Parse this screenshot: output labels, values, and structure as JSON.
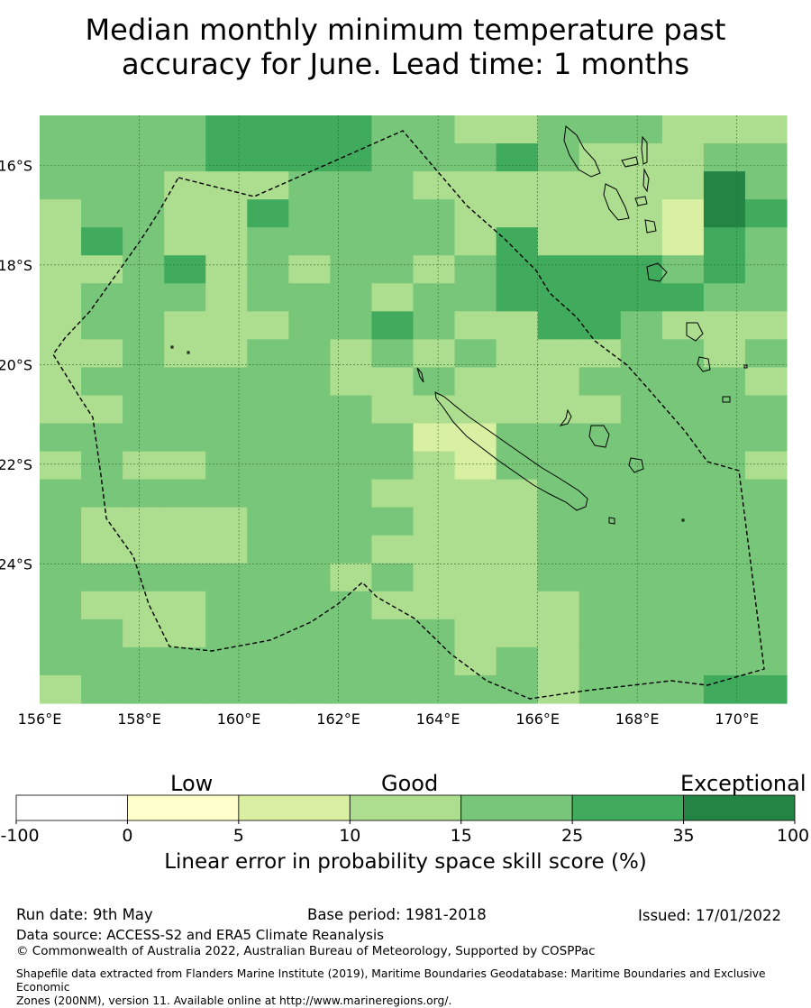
{
  "title": {
    "line1": "Median monthly minimum temperature past",
    "line2": "accuracy for June. Lead time: 1 months"
  },
  "map": {
    "lon_range": [
      156,
      171
    ],
    "lat_range": [
      -26.8,
      -15
    ],
    "lon_ticks": [
      "156°E",
      "158°E",
      "160°E",
      "162°E",
      "164°E",
      "166°E",
      "168°E",
      "170°E"
    ],
    "lat_ticks": [
      "16°S",
      "18°S",
      "20°S",
      "22°S",
      "24°S"
    ],
    "grid_columns": 18,
    "grid_rows": 21,
    "category_grid": [
      "444455554433444333",
      "444455554445433344",
      "444333444333333364",
      "344335444433333265",
      "354334444435333254",
      "334534344345555454",
      "344434443445555544",
      "344333445433554333",
      "334334434343334434",
      "344444433433344443",
      "334444443333334444",
      "444444444224444444",
      "343344444324444443",
      "444444443333444444",
      "433334444333444444",
      "433334443333444444",
      "444444434333444444",
      "433344443333344444",
      "443344444433344444",
      "444444444434344444",
      "344444444444344455"
    ],
    "colors": {
      "negative": "#ffffff",
      "0-5": "#ffffcc",
      "5-10": "#d9f0a3",
      "10-15": "#addd8e",
      "15-25": "#78c679",
      "25-35": "#41ab5d",
      "35-100": "#238443"
    },
    "boundary_color": "#000000",
    "gridline_color": "#2e6b2e"
  },
  "legend": {
    "category_labels": [
      "Low",
      "Good",
      "Exceptional"
    ],
    "tick_labels": [
      "-100",
      "0",
      "5",
      "10",
      "15",
      "25",
      "35",
      "100"
    ],
    "colors": [
      "#ffffff",
      "#ffffcc",
      "#d9f0a3",
      "#addd8e",
      "#78c679",
      "#41ab5d",
      "#238443"
    ],
    "axis_title": "Linear error in probability space skill score (%)"
  },
  "footer": {
    "run_date": "Run date: 9th May",
    "base_period": "Base period: 1981-2018",
    "issued": "Issued: 17/01/2022",
    "data_source": "Data source: ACCESS-S2 and ERA5 Climate Reanalysis",
    "copyright": "© Commonwealth of Australia 2022, Australian Bureau of Meteorology, Supported by COSPPac",
    "shapefile_line1": "Shapefile data extracted from Flanders Marine Institute (2019), Maritime Boundaries Geodatabase: Maritime Boundaries and Exclusive Economic",
    "shapefile_line2": "Zones (200NM), version 11. Available online at http://www.marineregions.org/."
  }
}
